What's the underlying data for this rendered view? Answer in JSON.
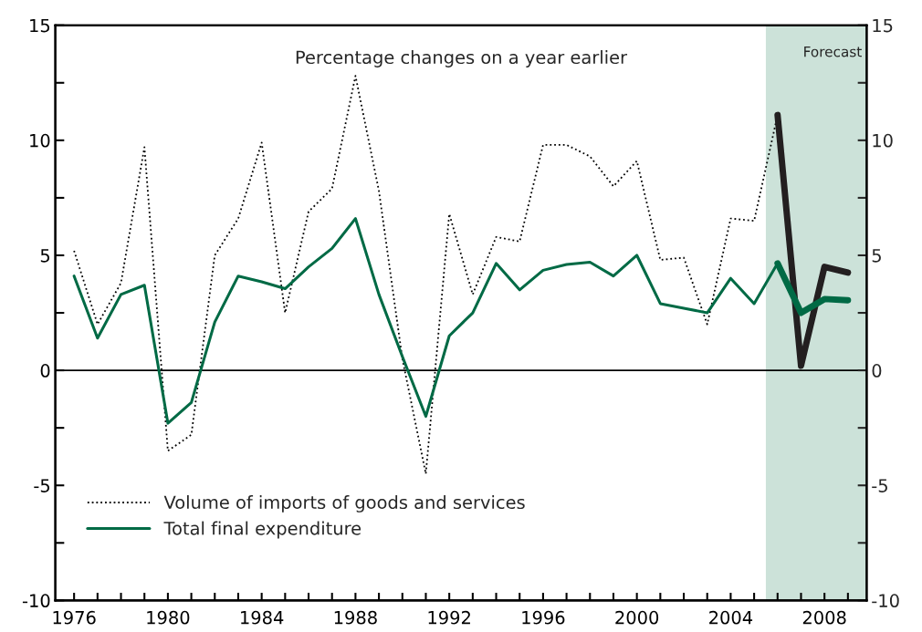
{
  "chart_data": {
    "type": "line",
    "title": "Percentage changes on a year earlier",
    "x": [
      1976,
      1977,
      1978,
      1979,
      1980,
      1981,
      1982,
      1983,
      1984,
      1985,
      1986,
      1987,
      1988,
      1989,
      1990,
      1991,
      1992,
      1993,
      1994,
      1995,
      1996,
      1997,
      1998,
      1999,
      2000,
      2001,
      2002,
      2003,
      2004,
      2005,
      2006
    ],
    "series": [
      {
        "name": "Volume of imports of goods and services",
        "color": "#000000",
        "line_style": "dotted",
        "values": [
          5.2,
          2.0,
          3.8,
          9.7,
          -3.5,
          -2.8,
          5.0,
          6.6,
          9.9,
          2.5,
          6.9,
          7.9,
          12.8,
          7.8,
          0.5,
          -4.5,
          6.8,
          3.3,
          5.8,
          5.6,
          9.8,
          9.8,
          9.3,
          8.0,
          9.1,
          4.8,
          4.9,
          2.0,
          6.6,
          6.5,
          11.1
        ]
      },
      {
        "name": "Total final expenditure",
        "color": "#006a45",
        "line_style": "solid",
        "values": [
          4.1,
          1.4,
          3.3,
          3.7,
          -2.3,
          -1.4,
          2.1,
          4.1,
          3.85,
          3.55,
          4.5,
          5.3,
          6.6,
          3.3,
          0.6,
          -2.0,
          1.5,
          2.5,
          4.65,
          3.5,
          4.35,
          4.6,
          4.7,
          4.1,
          5.0,
          2.9,
          2.7,
          2.5,
          4.0,
          2.9,
          4.65
        ]
      },
      {
        "color": "#231f20",
        "line_style": "solid",
        "x": [
          2006,
          2007,
          2008,
          2009
        ],
        "values": [
          11.1,
          0.2,
          4.5,
          4.25
        ]
      },
      {
        "color": "#006a45",
        "line_style": "solid",
        "x": [
          2006,
          2007,
          2008,
          2009
        ],
        "values": [
          4.65,
          2.5,
          3.1,
          3.05
        ]
      }
    ],
    "xlim": [
      1975.2,
      2009.8
    ],
    "ylim": [
      -10,
      15
    ],
    "y2lim": [
      -10,
      15
    ],
    "xticks": [
      1976,
      {
        "value": 1977,
        "label": null
      },
      {
        "value": 1978,
        "label": null
      },
      {
        "value": 1979,
        "label": null
      },
      1980,
      {
        "value": 1981,
        "label": null
      },
      {
        "value": 1982,
        "label": null
      },
      {
        "value": 1983,
        "label": null
      },
      1984,
      {
        "value": 1985,
        "label": null
      },
      {
        "value": 1986,
        "label": null
      },
      {
        "value": 1987,
        "label": null
      },
      1988,
      {
        "value": 1989,
        "label": null
      },
      {
        "value": 1990,
        "label": null
      },
      {
        "value": 1991,
        "label": null
      },
      1992,
      {
        "value": 1993,
        "label": null
      },
      {
        "value": 1994,
        "label": null
      },
      {
        "value": 1995,
        "label": null
      },
      1996,
      {
        "value": 1997,
        "label": null
      },
      {
        "value": 1998,
        "label": null
      },
      {
        "value": 1999,
        "label": null
      },
      2000,
      {
        "value": 2001,
        "label": null
      },
      {
        "value": 2002,
        "label": null
      },
      {
        "value": 2003,
        "label": null
      },
      2004,
      {
        "value": 2005,
        "label": null
      },
      {
        "value": 2006,
        "label": null
      },
      {
        "value": 2007,
        "label": null
      },
      2008,
      {
        "value": 2009,
        "label": null
      }
    ],
    "yticks": [
      -10,
      {
        "value": -7.5,
        "label": null
      },
      -5,
      {
        "value": -2.5,
        "label": null
      },
      0,
      {
        "value": 2.5,
        "label": null
      },
      5,
      {
        "value": 7.5,
        "label": null
      },
      10,
      {
        "value": 12.5,
        "label": null
      },
      15
    ],
    "y2ticks": [
      -10,
      {
        "value": -7.5,
        "label": null
      },
      -5,
      {
        "value": -2.5,
        "label": null
      },
      0,
      {
        "value": 2.5,
        "label": null
      },
      5,
      {
        "value": 7.5,
        "label": null
      },
      10,
      {
        "value": 12.5,
        "label": null
      },
      15
    ],
    "ref_lines": [
      {
        "axis": "y",
        "value": 0,
        "color": "#000000",
        "line_style": "solid"
      }
    ],
    "bands": [
      {
        "axis": "x",
        "from": 2005.5,
        "to": 2009.8,
        "label": "Forecast",
        "color": "#cce2d9"
      }
    ],
    "legend": "bottom left",
    "grid": false
  }
}
